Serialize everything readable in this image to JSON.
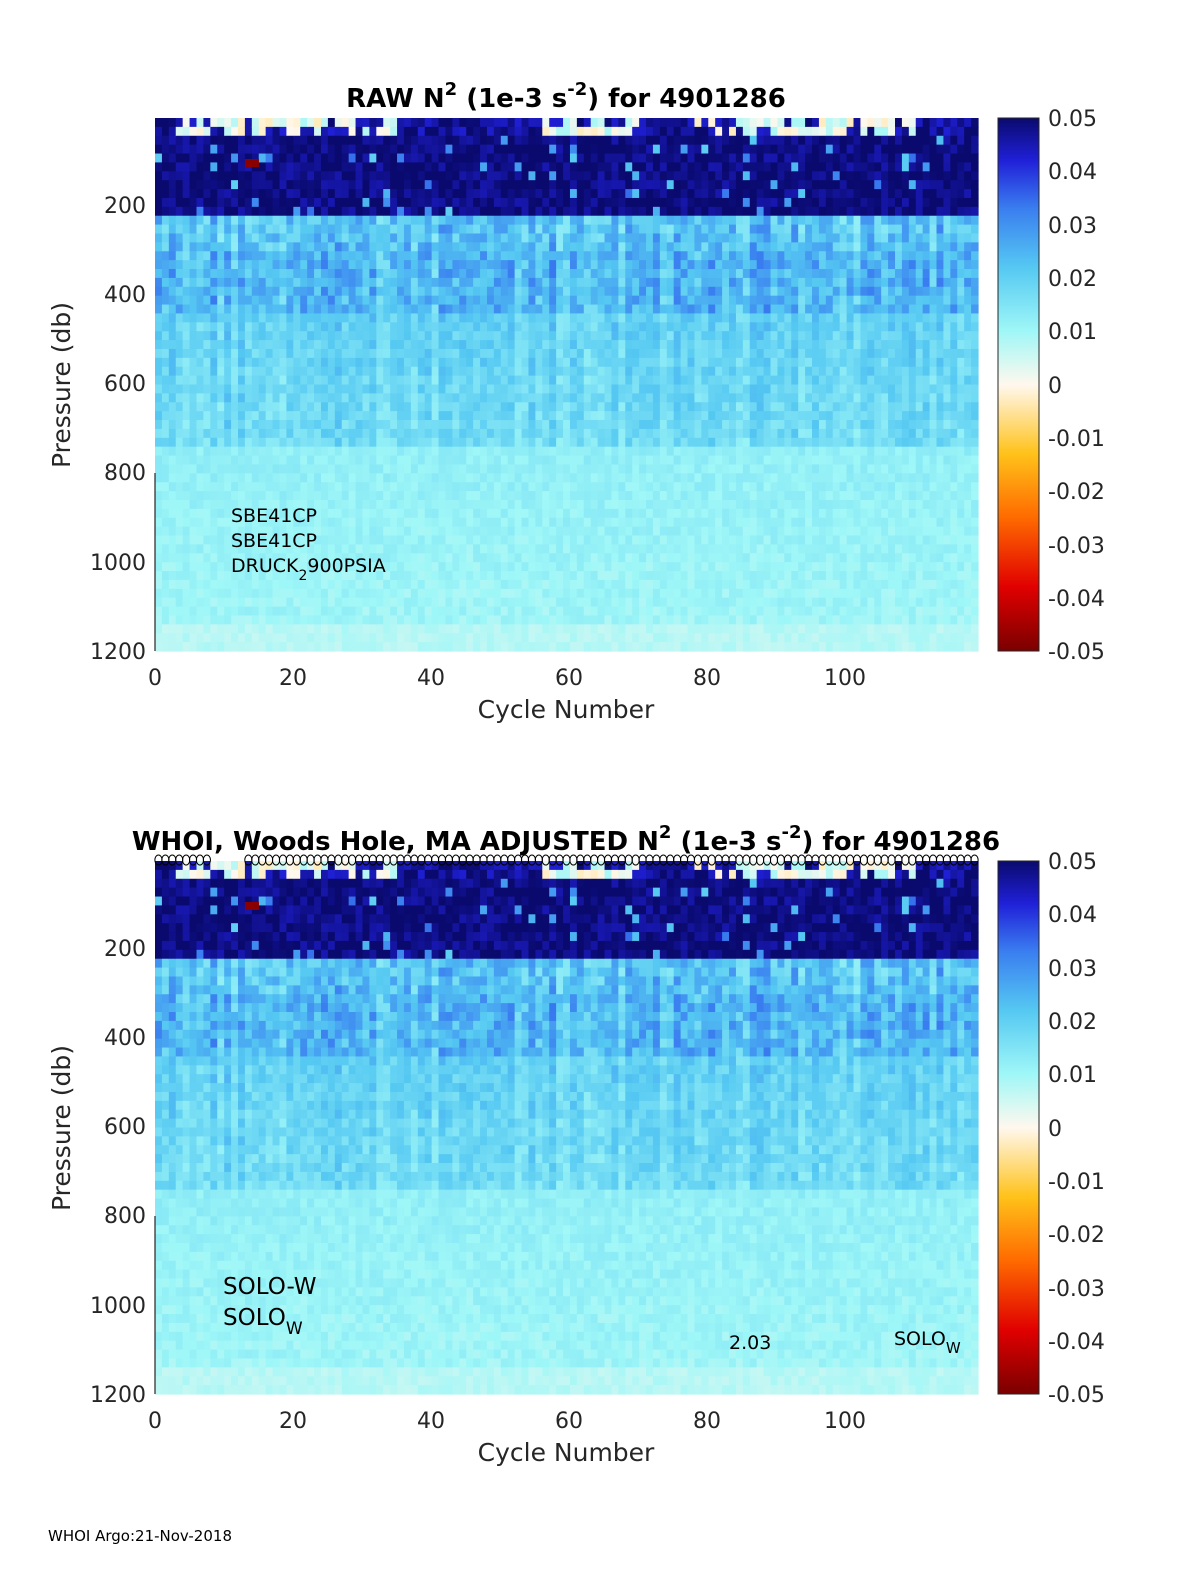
{
  "footer": "WHOI Argo:21-Nov-2018",
  "chart_data": [
    {
      "type": "heatmap",
      "title_parts": [
        "RAW N",
        "2",
        " (1e-3 s",
        "-2",
        ") for 4901286"
      ],
      "xlabel": "Cycle Number",
      "ylabel": "Pressure (db)",
      "xlim": [
        0,
        119
      ],
      "ylim": [
        1200,
        0
      ],
      "y_reversed": true,
      "xticks": [
        "0",
        "20",
        "40",
        "60",
        "80",
        "100"
      ],
      "yticks": [
        "200",
        "400",
        "600",
        "800",
        "1000",
        "1200"
      ],
      "clim": [
        -0.05,
        0.05
      ],
      "colorbar_ticks": [
        "0.05",
        "0.04",
        "0.03",
        "0.02",
        "0.01",
        "0",
        "-0.01",
        "-0.02",
        "-0.03",
        "-0.04",
        "-0.05"
      ],
      "colormap": "jet-like diverging (dark red -> red -> orange -> white -> cyan -> blue -> dark navy)",
      "annotations": [
        {
          "text": "SBE41CP"
        },
        {
          "text": "SBE41CP"
        },
        {
          "text": "DRUCK",
          "sub": "2",
          "rest": "900PSIA"
        }
      ]
    },
    {
      "type": "heatmap",
      "title_parts": [
        "WHOI, Woods Hole, MA  ADJUSTED N",
        "2",
        " (1e-3 s",
        "-2",
        ") for 4901286"
      ],
      "xlabel": "Cycle Number",
      "ylabel": "Pressure (db)",
      "xlim": [
        0,
        119
      ],
      "ylim": [
        1200,
        0
      ],
      "y_reversed": true,
      "xticks": [
        "0",
        "20",
        "40",
        "60",
        "80",
        "100"
      ],
      "yticks": [
        "200",
        "400",
        "600",
        "800",
        "1000",
        "1200"
      ],
      "clim": [
        -0.05,
        0.05
      ],
      "colorbar_ticks": [
        "0.05",
        "0.04",
        "0.03",
        "0.02",
        "0.01",
        "0",
        "-0.01",
        "-0.02",
        "-0.03",
        "-0.04",
        "-0.05"
      ],
      "annotations": [
        {
          "text": "SOLO-W"
        },
        {
          "text": "SOLO",
          "sub": "W"
        },
        {
          "text": "2.03"
        },
        {
          "text": "SOLO",
          "sub": "W"
        }
      ],
      "profile_markers": "open circles along top edge"
    }
  ]
}
